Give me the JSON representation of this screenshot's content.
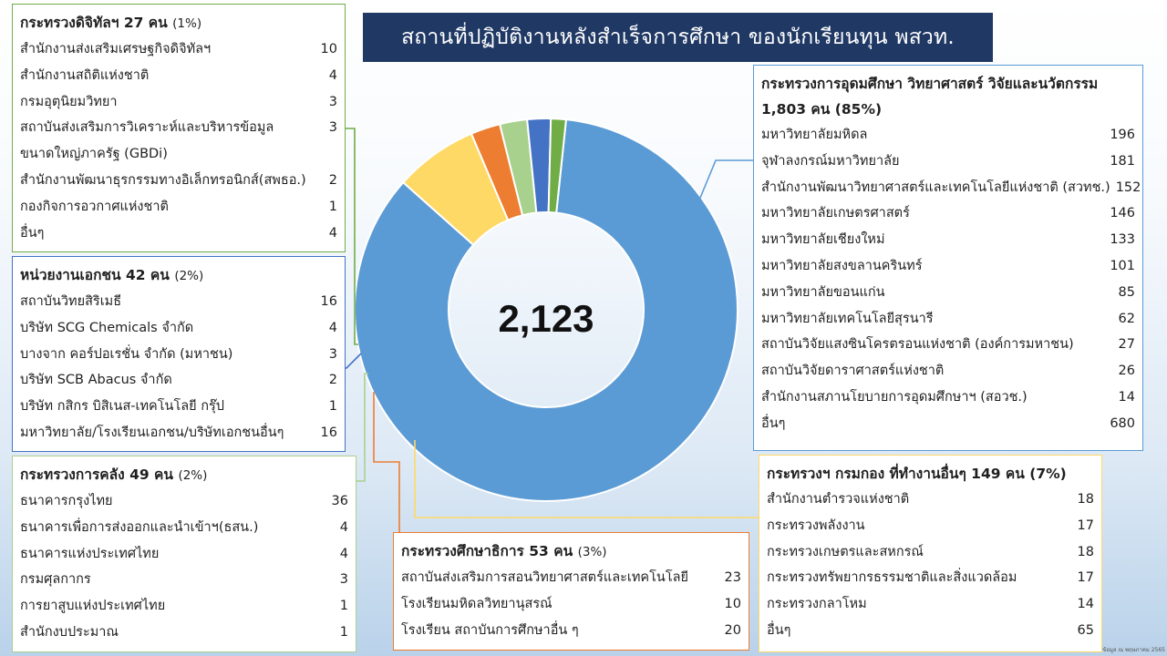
{
  "title": "สถานที่ปฏิบัติงานหลังสำเร็จการศึกษา ของนักเรียนทุน พสวท.",
  "center_total": "2,123",
  "note": "ข้อมูล ณ พฤษภาคม 2565",
  "colors": {
    "title_bg": "#1f3864",
    "mhesi": "#5b9bd5",
    "other": "#ffd966",
    "moe": "#ed7d31",
    "finance": "#a9d18e",
    "private": "#4472c4",
    "digital": "#70ad47"
  },
  "chart_data": {
    "type": "pie",
    "total": 2123,
    "slices": [
      {
        "id": "mhesi",
        "label": "กระทรวงการอุดมศึกษา วิทยาศาสตร์ วิจัยและนวัตกรรม",
        "value": 1803
      },
      {
        "id": "other",
        "label": "กระทรวงฯ กรมกอง ที่ทำงานอื่นๆ",
        "value": 149
      },
      {
        "id": "moe",
        "label": "กระทรวงศึกษาธิการ",
        "value": 53
      },
      {
        "id": "finance",
        "label": "กระทรวงการคลัง",
        "value": 49
      },
      {
        "id": "private",
        "label": "หน่วยงานเอกชน",
        "value": 42
      },
      {
        "id": "digital",
        "label": "กระทรวงดิจิทัลฯ",
        "value": 27
      }
    ]
  },
  "panels": {
    "digital": {
      "head": "กระทรวงดิจิทัลฯ 27 คน",
      "pct": "(1%)",
      "items": [
        {
          "name": "สำนักงานส่งเสริมเศรษฐกิจดิจิทัลฯ",
          "value": "10"
        },
        {
          "name": "สำนักงานสถิติแห่งชาติ",
          "value": "4"
        },
        {
          "name": "กรมอุตุนิยมวิทยา",
          "value": "3"
        },
        {
          "name": "สถาบันส่งเสริมการวิเคราะห์และบริหารข้อมูล",
          "value": "3"
        },
        {
          "name": "ขนาดใหญ่ภาครัฐ (GBDi)",
          "value": ""
        },
        {
          "name": "สำนักงานพัฒนาธุรกรรมทางอิเล็กทรอนิกส์(สพธอ.)",
          "value": "2"
        },
        {
          "name": "กองกิจการอวกาศแห่งชาติ",
          "value": "1"
        },
        {
          "name": "อื่นๆ",
          "value": "4"
        }
      ]
    },
    "private": {
      "head": "หน่วยงานเอกชน 42 คน",
      "pct": "(2%)",
      "items": [
        {
          "name": "สถาบันวิทยสิริเมธี",
          "value": "16"
        },
        {
          "name": "บริษัท SCG Chemicals จำกัด",
          "value": "4"
        },
        {
          "name": "บางจาก คอร์ปอเรชั่น จำกัด (มหาชน)",
          "value": "3"
        },
        {
          "name": "บริษัท SCB Abacus จำกัด",
          "value": "2"
        },
        {
          "name": "บริษัท กสิกร บิสิเนส-เทคโนโลยี กรุ๊ป",
          "value": "1"
        },
        {
          "name": "มหาวิทยาลัย/โรงเรียนเอกชน/บริษัทเอกชนอื่นๆ",
          "value": "16"
        }
      ]
    },
    "finance": {
      "head": "กระทรวงการคลัง 49 คน",
      "pct": "(2%)",
      "items": [
        {
          "name": "ธนาคารกรุงไทย",
          "value": "36"
        },
        {
          "name": "ธนาคารเพื่อการส่งออกและนำเข้าฯ(ธสน.)",
          "value": "4"
        },
        {
          "name": "ธนาคารแห่งประเทศไทย",
          "value": "4"
        },
        {
          "name": "กรมศุลกากร",
          "value": "3"
        },
        {
          "name": "การยาสูบแห่งประเทศไทย",
          "value": "1"
        },
        {
          "name": "สำนักงบประมาณ",
          "value": "1"
        }
      ]
    },
    "moe": {
      "head": "กระทรวงศึกษาธิการ 53 คน",
      "pct": "(3%)",
      "items": [
        {
          "name": "สถาบันส่งเสริมการสอนวิทยาศาสตร์และเทคโนโลยี",
          "value": "23"
        },
        {
          "name": "โรงเรียนมหิดลวิทยานุสรณ์",
          "value": "10"
        },
        {
          "name": "โรงเรียน สถาบันการศึกษาอื่น ๆ",
          "value": "20"
        }
      ]
    },
    "mhesi": {
      "head": "กระทรวงการอุดมศึกษา วิทยาศาสตร์ วิจัยและนวัตกรรม",
      "head2": "1,803 คน (85%)",
      "items": [
        {
          "name": "มหาวิทยาลัยมหิดล",
          "value": "196"
        },
        {
          "name": "จุฬาลงกรณ์มหาวิทยาลัย",
          "value": "181"
        },
        {
          "name": "สำนักงานพัฒนาวิทยาศาสตร์และเทคโนโลยีแห่งชาติ (สวทช.)",
          "value": "152"
        },
        {
          "name": "มหาวิทยาลัยเกษตรศาสตร์",
          "value": "146"
        },
        {
          "name": "มหาวิทยาลัยเชียงใหม่",
          "value": "133"
        },
        {
          "name": "มหาวิทยาลัยสงขลานครินทร์",
          "value": "101"
        },
        {
          "name": "มหาวิทยาลัยขอนแก่น",
          "value": "85"
        },
        {
          "name": "มหาวิทยาลัยเทคโนโลยีสุรนารี",
          "value": "62"
        },
        {
          "name": "สถาบันวิจัยแสงซินโครตรอนแห่งชาติ (องค์การมหาชน)",
          "value": "27"
        },
        {
          "name": "สถาบันวิจัยดาราศาสตร์แห่งชาติ",
          "value": "26"
        },
        {
          "name": "สำนักงานสภานโยบายการอุดมศึกษาฯ (สอวช.)",
          "value": "14"
        },
        {
          "name": "อื่นๆ",
          "value": "680"
        }
      ]
    },
    "other": {
      "head": "กระทรวงฯ กรมกอง ที่ทำงานอื่นๆ 149 คน (7%)",
      "items": [
        {
          "name": "สำนักงานตำรวจแห่งชาติ",
          "value": "18"
        },
        {
          "name": "กระทรวงพลังงาน",
          "value": "17"
        },
        {
          "name": "กระทรวงเกษตรและสหกรณ์",
          "value": "18"
        },
        {
          "name": "กระทรวงทรัพยากรธรรมชาติและสิ่งแวดล้อม",
          "value": "17"
        },
        {
          "name": "กระทรวงกลาโหม",
          "value": "14"
        },
        {
          "name": "อื่นๆ",
          "value": "65"
        }
      ]
    }
  }
}
